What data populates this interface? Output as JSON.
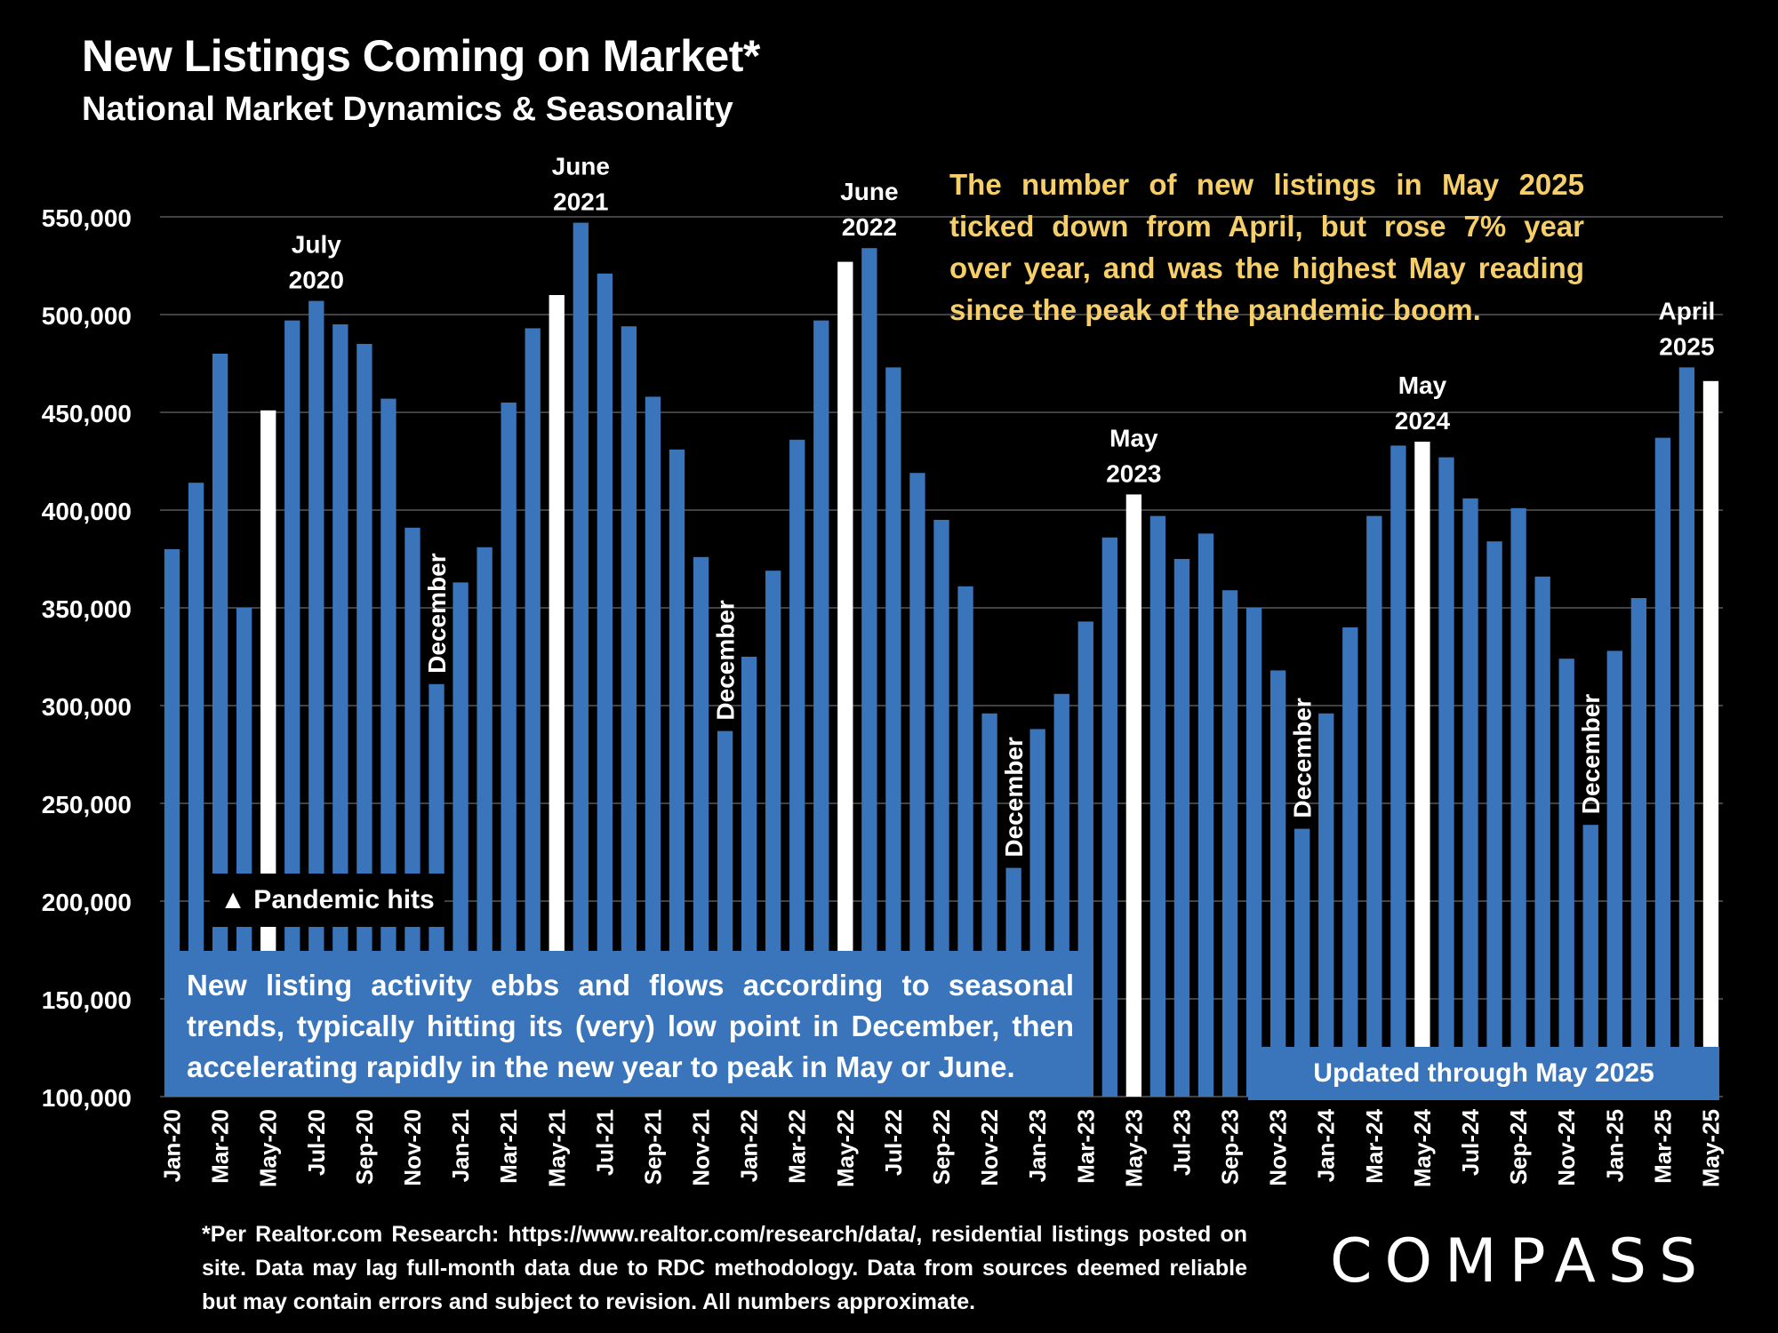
{
  "header": {
    "title": "New Listings Coming on Market*",
    "subtitle": "National Market Dynamics & Seasonality"
  },
  "chart_data": {
    "type": "bar",
    "title": "New Listings Coming on Market*",
    "subtitle": "National Market Dynamics & Seasonality",
    "xlabel": "",
    "ylabel": "",
    "ylim": [
      100000,
      550000
    ],
    "y_ticks": [
      100000,
      150000,
      200000,
      250000,
      300000,
      350000,
      400000,
      450000,
      500000,
      550000
    ],
    "y_tick_labels": [
      "100,000",
      "150,000",
      "200,000",
      "250,000",
      "300,000",
      "350,000",
      "400,000",
      "450,000",
      "500,000",
      "550,000"
    ],
    "grid": true,
    "categories": [
      "Jan-20",
      "Feb-20",
      "Mar-20",
      "Apr-20",
      "May-20",
      "Jun-20",
      "Jul-20",
      "Aug-20",
      "Sep-20",
      "Oct-20",
      "Nov-20",
      "Dec-20",
      "Jan-21",
      "Feb-21",
      "Mar-21",
      "Apr-21",
      "May-21",
      "Jun-21",
      "Jul-21",
      "Aug-21",
      "Sep-21",
      "Oct-21",
      "Nov-21",
      "Dec-21",
      "Jan-22",
      "Feb-22",
      "Mar-22",
      "Apr-22",
      "May-22",
      "Jun-22",
      "Jul-22",
      "Aug-22",
      "Sep-22",
      "Oct-22",
      "Nov-22",
      "Dec-22",
      "Jan-23",
      "Feb-23",
      "Mar-23",
      "Apr-23",
      "May-23",
      "Jun-23",
      "Jul-23",
      "Aug-23",
      "Sep-23",
      "Oct-23",
      "Nov-23",
      "Dec-23",
      "Jan-24",
      "Feb-24",
      "Mar-24",
      "Apr-24",
      "May-24",
      "Jun-24",
      "Jul-24",
      "Aug-24",
      "Sep-24",
      "Oct-24",
      "Nov-24",
      "Dec-24",
      "Jan-25",
      "Feb-25",
      "Mar-25",
      "Apr-25",
      "May-25"
    ],
    "values": [
      380000,
      414000,
      480000,
      350000,
      451000,
      497000,
      507000,
      495000,
      485000,
      457000,
      391000,
      311000,
      363000,
      381000,
      455000,
      493000,
      510000,
      547000,
      521000,
      494000,
      458000,
      431000,
      376000,
      287000,
      325000,
      369000,
      436000,
      497000,
      527000,
      534000,
      473000,
      419000,
      395000,
      361000,
      296000,
      217000,
      288000,
      306000,
      343000,
      386000,
      408000,
      397000,
      375000,
      388000,
      359000,
      350000,
      318000,
      237000,
      296000,
      340000,
      397000,
      433000,
      435000,
      427000,
      406000,
      384000,
      401000,
      366000,
      324000,
      239000,
      328000,
      355000,
      437000,
      473000,
      466000
    ],
    "x_tick_labels": [
      "Jan-20",
      "Mar-20",
      "May-20",
      "Jul-20",
      "Sep-20",
      "Nov-20",
      "Jan-21",
      "Mar-21",
      "May-21",
      "Jul-21",
      "Sep-21",
      "Nov-21",
      "Jan-22",
      "Mar-22",
      "May-22",
      "Jul-22",
      "Sep-22",
      "Nov-22",
      "Jan-23",
      "Mar-23",
      "May-23",
      "Jul-23",
      "Sep-23",
      "Nov-23",
      "Jan-24",
      "Mar-24",
      "May-24",
      "Jul-24",
      "Sep-24",
      "Nov-24",
      "Jan-25",
      "Mar-25",
      "May-25"
    ],
    "highlighted": [
      "May-20",
      "May-21",
      "May-22",
      "May-23",
      "May-24",
      "May-25"
    ],
    "colors": {
      "bar": "#3a74bb",
      "highlight": "#ffffff",
      "grid": "#595959",
      "note": "#f6cf6a"
    },
    "annotations": [
      {
        "category": "Jul-20",
        "lines": [
          "July",
          "2020"
        ]
      },
      {
        "category": "Jun-21",
        "lines": [
          "June",
          "2021"
        ]
      },
      {
        "category": "Jun-22",
        "lines": [
          "June",
          "2022"
        ]
      },
      {
        "category": "May-23",
        "lines": [
          "May",
          "2023"
        ]
      },
      {
        "category": "May-24",
        "lines": [
          "May",
          "2024"
        ]
      },
      {
        "category": "Apr-25",
        "lines": [
          "April",
          "2025"
        ]
      }
    ],
    "vertical_annotations": [
      {
        "category": "Dec-20",
        "text": "December"
      },
      {
        "category": "Dec-21",
        "text": "December"
      },
      {
        "category": "Dec-22",
        "text": "December"
      },
      {
        "category": "Dec-23",
        "text": "December"
      },
      {
        "category": "Dec-24",
        "text": "December"
      }
    ]
  },
  "notes": {
    "top_right": "The number of new listings in May 2025 ticked down from April, but rose 7% year over year, and was the highest May reading since the peak of the pandemic boom.",
    "seasonal": "New listing activity ebbs and flows according to seasonal trends, typically hitting its (very) low point in December, then accelerating rapidly in the new year to peak in May or June.",
    "pandemic": "▲ Pandemic hits",
    "updated": "Updated through May 2025"
  },
  "footnote": "*Per Realtor.com Research: https://www.realtor.com/research/data/, residential listings posted on site. Data may lag full-month data due to RDC methodology. Data from sources deemed reliable but may contain errors and subject to revision. All numbers approximate.",
  "logo": {
    "text": "COMPASS"
  }
}
